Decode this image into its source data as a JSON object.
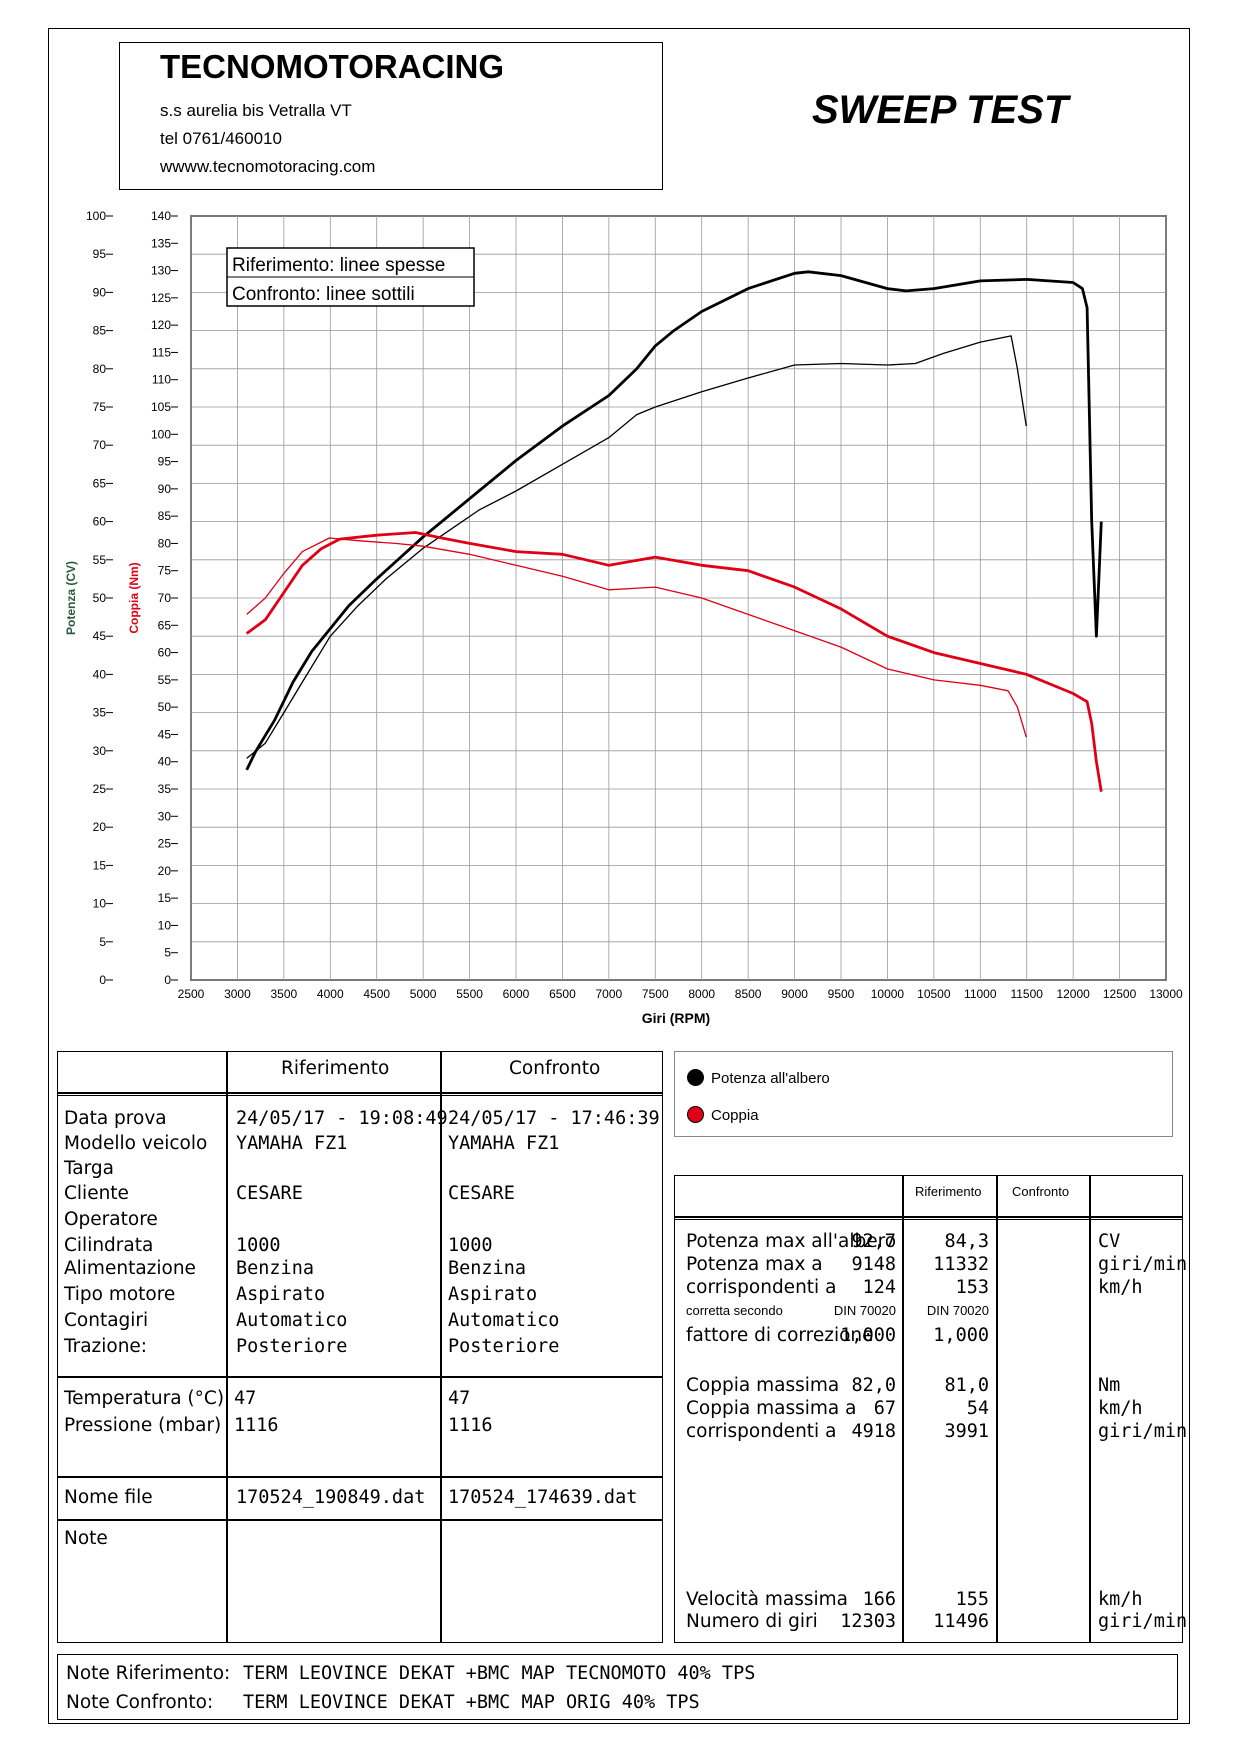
{
  "header": {
    "company": "TECNOMOTORACING",
    "address": "s.s aurelia bis  Vetralla  VT",
    "phone": "tel 0761/460010",
    "website": "wwww.tecnomotoracing.com",
    "test_title": "SWEEP TEST"
  },
  "chart_data": {
    "type": "line",
    "xlabel": "Giri (RPM)",
    "ylabel_power": "Potenza (CV)",
    "ylabel_torque": "Coppia (Nm)",
    "xlim": [
      2500,
      13000
    ],
    "x_ticks": [
      2500,
      3000,
      3500,
      4000,
      4500,
      5000,
      5500,
      6000,
      6500,
      7000,
      7500,
      8000,
      8500,
      9000,
      9500,
      10000,
      10500,
      11000,
      11500,
      12000,
      12500,
      13000
    ],
    "ylim_power": [
      0,
      100
    ],
    "y_ticks_power": [
      0,
      5,
      10,
      15,
      20,
      25,
      30,
      35,
      40,
      45,
      50,
      55,
      60,
      65,
      70,
      75,
      80,
      85,
      90,
      95,
      100
    ],
    "ylim_torque": [
      0,
      140
    ],
    "y_ticks_torque": [
      0,
      5,
      10,
      15,
      20,
      25,
      30,
      35,
      40,
      45,
      50,
      55,
      60,
      65,
      70,
      75,
      80,
      85,
      90,
      95,
      100,
      105,
      110,
      115,
      120,
      125,
      130,
      135,
      140
    ],
    "legend_box": [
      "Riferimento: linee spesse",
      "Confronto: linee sottili"
    ],
    "grid": true,
    "series": [
      {
        "name": "Potenza all'albero",
        "run": "Riferimento",
        "axis": "power",
        "color": "#000000",
        "x": [
          3100,
          3200,
          3400,
          3600,
          3800,
          4000,
          4200,
          4500,
          5000,
          5300,
          5600,
          6000,
          6500,
          7000,
          7300,
          7500,
          7700,
          8000,
          8500,
          9000,
          9148,
          9500,
          10000,
          10200,
          10500,
          11000,
          11500,
          12000,
          12100,
          12150,
          12200,
          12250,
          12303
        ],
        "y": [
          27.5,
          30,
          34,
          39,
          43,
          46,
          49,
          52.5,
          58,
          61,
          64,
          68,
          72.5,
          76.5,
          80,
          83,
          85,
          87.5,
          90.5,
          92.5,
          92.7,
          92.2,
          90.5,
          90.2,
          90.5,
          91.5,
          91.7,
          91.3,
          90.5,
          88,
          60,
          45,
          60
        ]
      },
      {
        "name": "Potenza all'albero",
        "run": "Confronto",
        "axis": "power",
        "color": "#000000",
        "x": [
          3100,
          3300,
          3500,
          3700,
          4000,
          4300,
          4600,
          5000,
          5300,
          5600,
          6000,
          6500,
          7000,
          7300,
          7500,
          8000,
          8500,
          9000,
          9500,
          10000,
          10300,
          10600,
          11000,
          11332,
          11400,
          11450,
          11496
        ],
        "y": [
          29,
          31,
          35,
          39,
          45,
          49,
          52.5,
          56.5,
          59,
          61.5,
          64,
          67.5,
          71,
          74,
          75,
          77,
          78.8,
          80.5,
          80.7,
          80.5,
          80.7,
          82,
          83.5,
          84.3,
          80,
          76,
          72.5
        ]
      },
      {
        "name": "Coppia",
        "run": "Riferimento",
        "axis": "torque",
        "color": "#e00015",
        "x": [
          3100,
          3300,
          3500,
          3700,
          3900,
          4100,
          4500,
          4918,
          5200,
          5500,
          6000,
          6500,
          7000,
          7500,
          8000,
          8500,
          9000,
          9500,
          10000,
          10500,
          11000,
          11500,
          12000,
          12150,
          12200,
          12250,
          12303
        ],
        "y": [
          63.5,
          66,
          71,
          76,
          79,
          80.8,
          81.5,
          82.0,
          81,
          80,
          78.5,
          78,
          76,
          77.5,
          76,
          75,
          72,
          68,
          63,
          60,
          58,
          56,
          52.5,
          51,
          47,
          40,
          34.5
        ]
      },
      {
        "name": "Coppia",
        "run": "Confronto",
        "axis": "torque",
        "color": "#e00015",
        "x": [
          3100,
          3300,
          3500,
          3700,
          3991,
          4300,
          4700,
          5000,
          5500,
          6000,
          6500,
          7000,
          7500,
          8000,
          8500,
          9000,
          9500,
          10000,
          10500,
          11000,
          11300,
          11400,
          11496
        ],
        "y": [
          67,
          70,
          74.5,
          78.5,
          81.0,
          80.5,
          80,
          79.5,
          78,
          76,
          74,
          71.5,
          72,
          70,
          67,
          64,
          61,
          57,
          55,
          54,
          53,
          50,
          44.5
        ]
      }
    ]
  },
  "legend": {
    "items": [
      {
        "label": "Potenza all'albero",
        "color": "#000000"
      },
      {
        "label": "Coppia",
        "color": "#e00015"
      }
    ]
  },
  "vehicle_table": {
    "col_ref": "Riferimento",
    "col_conf": "Confronto",
    "labels1": [
      "Data prova",
      "Modello veicolo",
      "Targa",
      "Cliente",
      "Operatore",
      "Cilindrata",
      "Alimentazione",
      "Tipo motore",
      "Contagiri",
      "Trazione:"
    ],
    "ref1": [
      "24/05/17 - 19:08:49",
      "YAMAHA FZ1",
      "",
      "CESARE",
      "",
      "1000",
      "Benzina",
      "Aspirato",
      "Automatico",
      "Posteriore"
    ],
    "conf1": [
      "24/05/17 - 17:46:39",
      "YAMAHA FZ1",
      "",
      "CESARE",
      "",
      "1000",
      "Benzina",
      "Aspirato",
      "Automatico",
      "Posteriore"
    ],
    "labels2": [
      "Temperatura (°C)",
      "Pressione (mbar)"
    ],
    "ref2": [
      "47",
      "1116"
    ],
    "conf2": [
      "47",
      "1116"
    ],
    "file_label": "Nome file",
    "file_ref": "170524_190849.dat",
    "file_conf": "170524_174639.dat",
    "note_label": "Note"
  },
  "results_table": {
    "col_ref": "Riferimento",
    "col_conf": "Confronto",
    "rows": [
      {
        "label": "Potenza max all'albero",
        "ref": "92,7",
        "conf": "84,3",
        "unit": "CV"
      },
      {
        "label": "Potenza max a",
        "ref": "9148",
        "conf": "11332",
        "unit": "giri/min"
      },
      {
        "label": "corrispondenti a",
        "ref": "124",
        "conf": "153",
        "unit": "km/h"
      },
      {
        "label": "corretta secondo",
        "ref": "DIN 70020",
        "conf": "DIN 70020",
        "unit": "",
        "small": true
      },
      {
        "label": "fattore di correzione",
        "ref": "1,000",
        "conf": "1,000",
        "unit": ""
      },
      {
        "label": "Coppia massima",
        "ref": "82,0",
        "conf": "81,0",
        "unit": "Nm"
      },
      {
        "label": "Coppia massima a",
        "ref": "67",
        "conf": "54",
        "unit": "km/h"
      },
      {
        "label": "corrispondenti a",
        "ref": "4918",
        "conf": "3991",
        "unit": "giri/min"
      },
      {
        "label": "Velocità massima",
        "ref": "166",
        "conf": "155",
        "unit": "km/h"
      },
      {
        "label": "Numero di giri",
        "ref": "12303",
        "conf": "11496",
        "unit": "giri/min"
      }
    ]
  },
  "notes": {
    "ref_label": "Note Riferimento:",
    "ref_text": "TERM LEOVINCE DEKAT +BMC MAP TECNOMOTO 40% TPS",
    "conf_label": "Note Confronto:",
    "conf_text": "TERM LEOVINCE DEKAT +BMC MAP ORIG 40% TPS"
  }
}
